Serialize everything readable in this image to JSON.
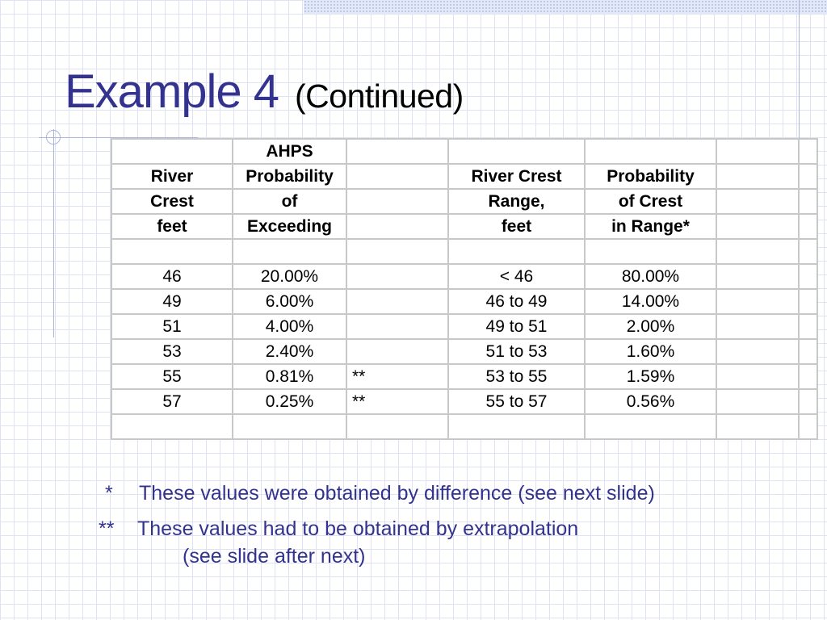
{
  "title": {
    "main": "Example 4",
    "sub": "(Continued)"
  },
  "table": {
    "header_lines": [
      [
        "",
        "AHPS",
        "",
        "",
        "",
        "",
        ""
      ],
      [
        "River",
        "Probability",
        "",
        "River Crest",
        "Probability",
        "",
        ""
      ],
      [
        "Crest",
        "of",
        "",
        "Range,",
        "of Crest",
        "",
        ""
      ],
      [
        "feet",
        "Exceeding",
        "",
        "feet",
        "in Range*",
        "",
        ""
      ]
    ],
    "rows": [
      [
        "46",
        "20.00%",
        "",
        "< 46",
        "80.00%",
        "",
        ""
      ],
      [
        "49",
        "6.00%",
        "",
        "46 to 49",
        "14.00%",
        "",
        ""
      ],
      [
        "51",
        "4.00%",
        "",
        "49 to 51",
        "2.00%",
        "",
        ""
      ],
      [
        "53",
        "2.40%",
        "",
        "51 to 53",
        "1.60%",
        "",
        ""
      ],
      [
        "55",
        "0.81%",
        "**",
        "53 to 55",
        "1.59%",
        "",
        ""
      ],
      [
        "57",
        "0.25%",
        "**",
        "55 to 57",
        "0.56%",
        "",
        ""
      ]
    ]
  },
  "footnotes": [
    {
      "mark": "*",
      "text": "These values were obtained by difference (see next slide)"
    },
    {
      "mark": "**",
      "text": "These values had to be obtained by extrapolation",
      "continuation": "(see slide after next)"
    }
  ],
  "colors": {
    "title": "#33338f",
    "footnote": "#33338f",
    "grid_line": "#c8c8c8",
    "background_grid": "#dde3f2"
  }
}
